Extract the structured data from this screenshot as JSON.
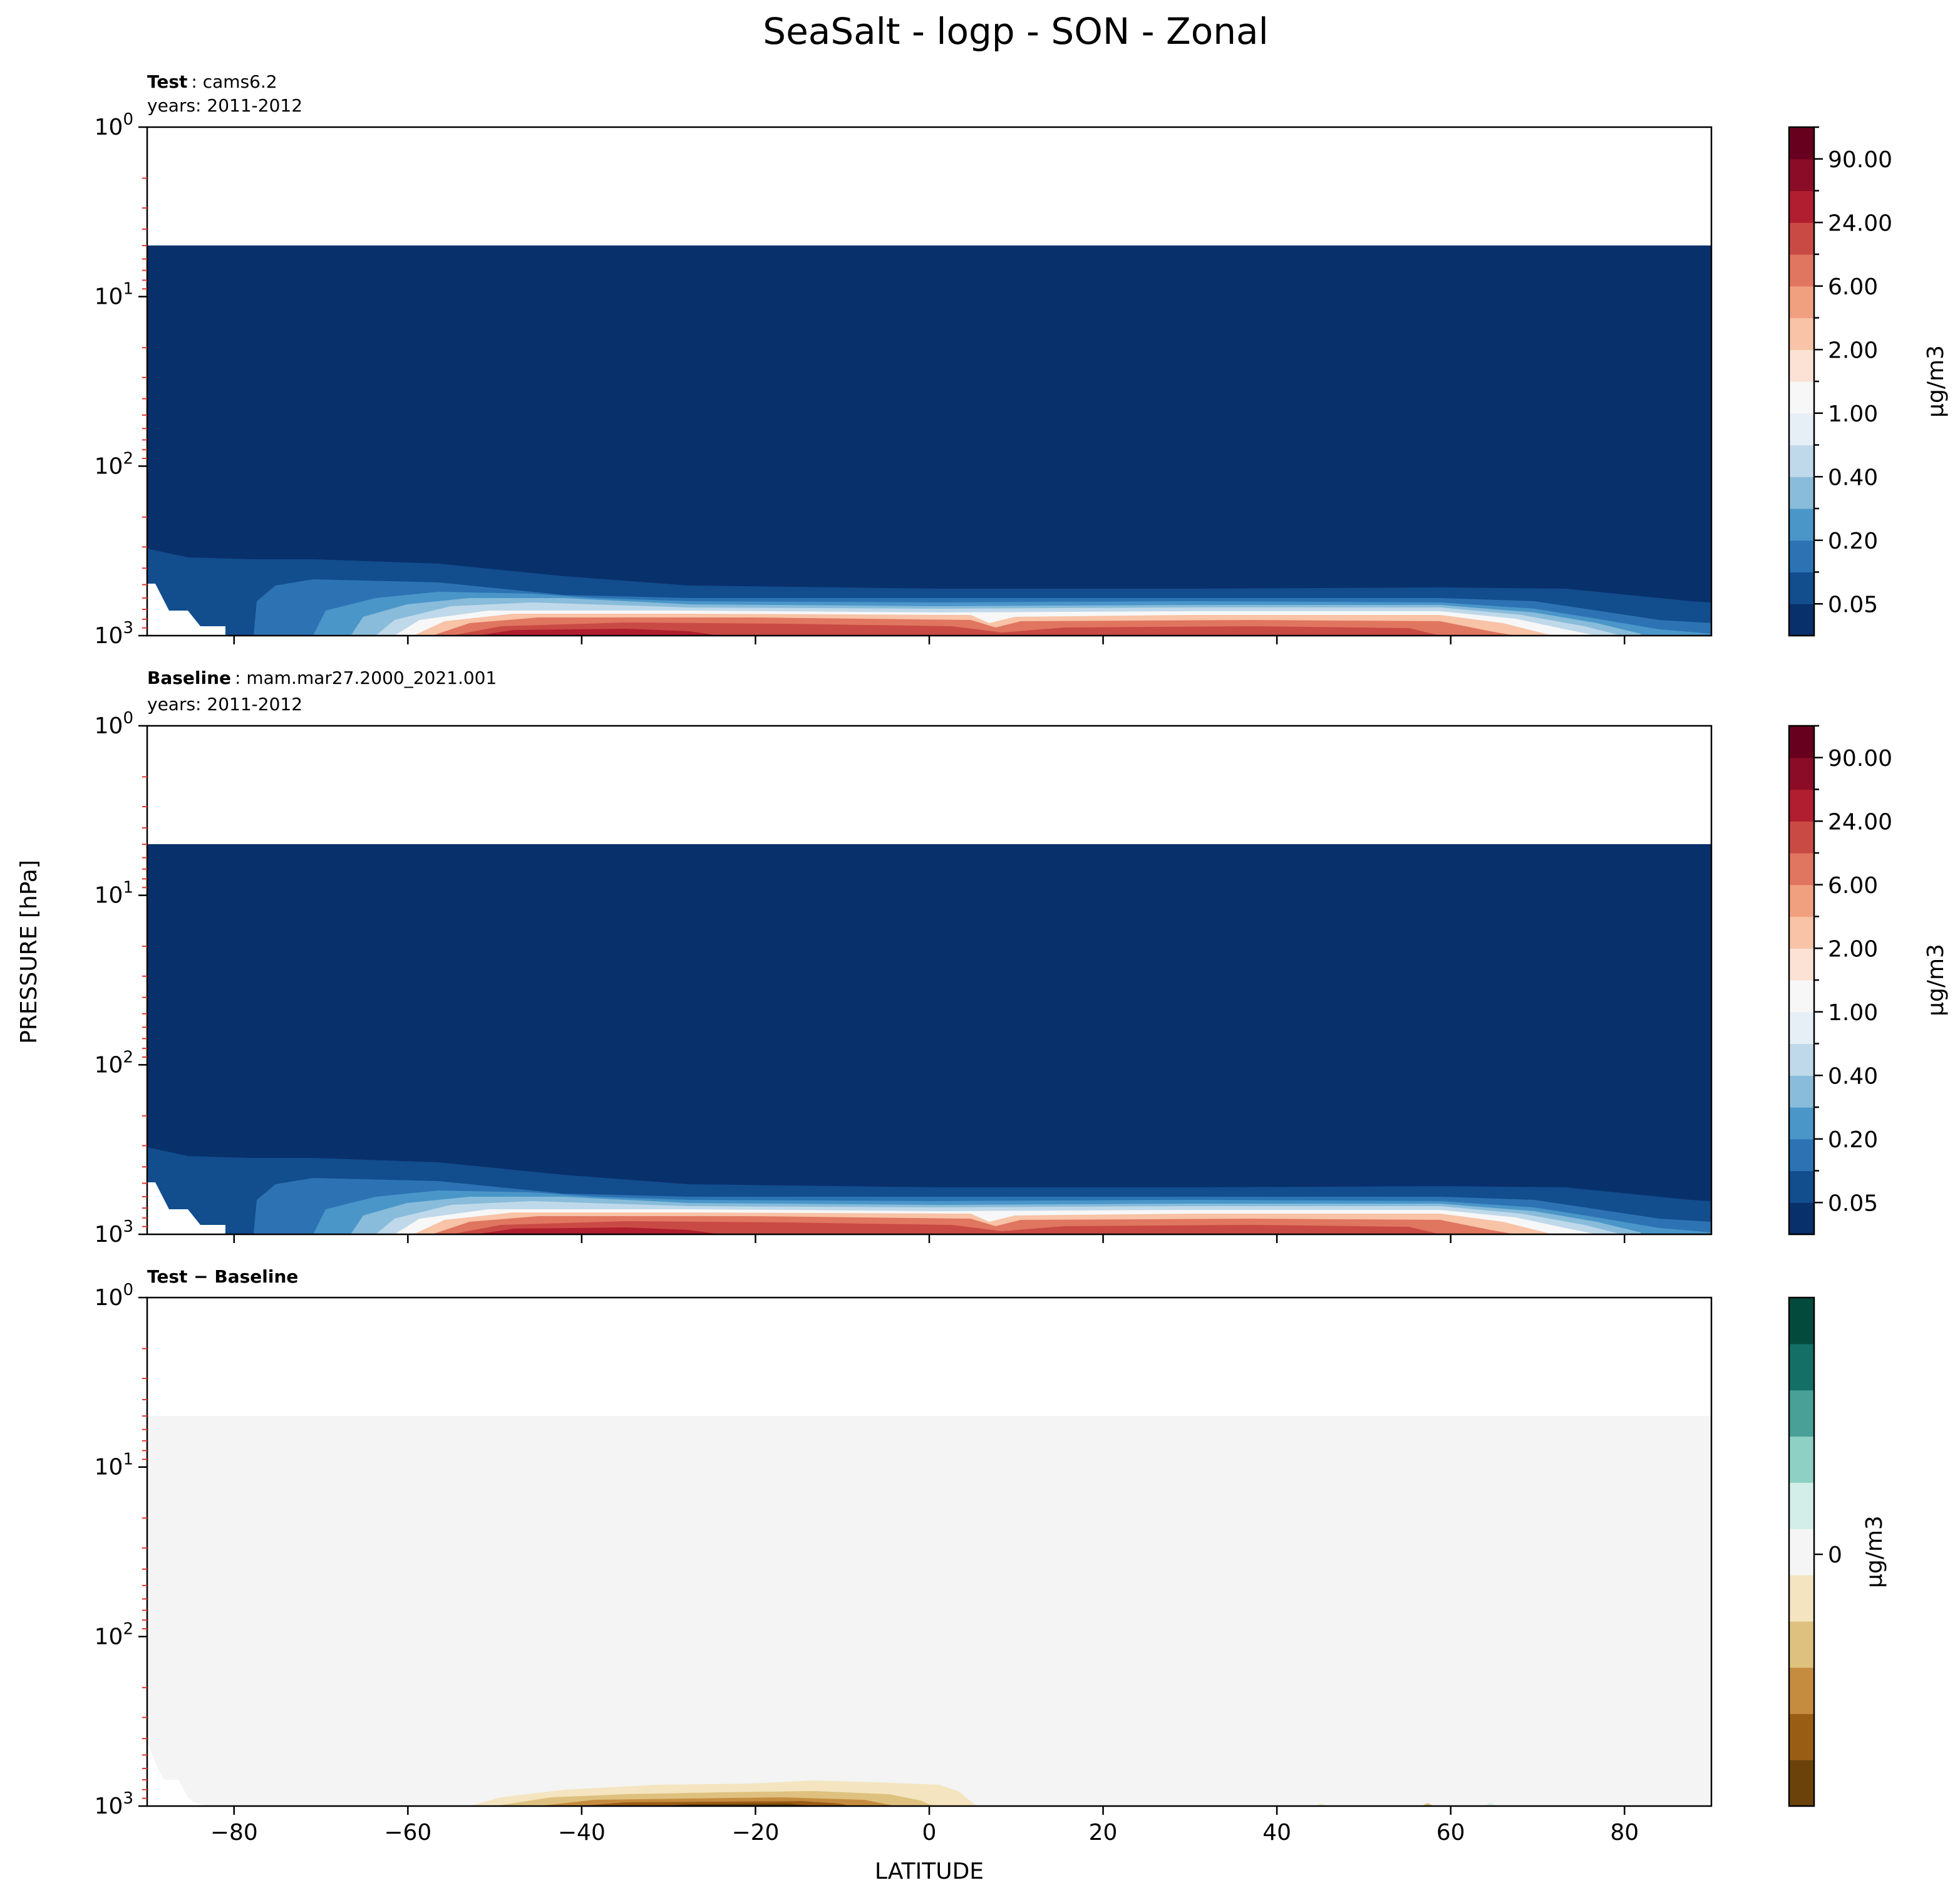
{
  "figure": {
    "title": "SeaSalt - logp - SON - Zonal",
    "ylabel": "PRESSURE [hPa]",
    "xlabel": "LATITUDE"
  },
  "chart_data": [
    {
      "type": "heatmap",
      "title_bold": "Test",
      "title_rest": ": cams6.2",
      "subtitle": "years: 2011-2012",
      "xlim": [
        -90,
        90
      ],
      "ylim_log": [
        1000,
        1
      ],
      "y_ticks": [
        "10^0",
        "10^1",
        "10^2",
        "10^3"
      ],
      "x_ticks": [
        -80,
        -60,
        -40,
        -20,
        0,
        20,
        40,
        60,
        80
      ],
      "x_tick_labels_visible": false,
      "model_top_hpa": 5,
      "colorbar": {
        "label": "μg/m3",
        "tick_labels": [
          "0.05",
          "0.20",
          "0.40",
          "1.00",
          "2.00",
          "6.00",
          "24.00",
          "90.00"
        ],
        "colors": [
          "#08306b",
          "#124d8e",
          "#2d73b4",
          "#4a96c9",
          "#89bcda",
          "#bfd9ea",
          "#e6eff5",
          "#f7f7f7",
          "#fbe2d4",
          "#f8c3a6",
          "#f1a07f",
          "#e07560",
          "#c94a44",
          "#b01e2f",
          "#8a0c26",
          "#67001f"
        ]
      }
    },
    {
      "type": "heatmap",
      "title_bold": "Baseline",
      "title_rest": ": mam.mar27.2000_2021.001",
      "subtitle": "years: 2011-2012",
      "xlim": [
        -90,
        90
      ],
      "ylim_log": [
        1000,
        1
      ],
      "y_ticks": [
        "10^0",
        "10^1",
        "10^2",
        "10^3"
      ],
      "x_ticks": [
        -80,
        -60,
        -40,
        -20,
        0,
        20,
        40,
        60,
        80
      ],
      "x_tick_labels_visible": false,
      "model_top_hpa": 5,
      "colorbar": {
        "label": "μg/m3",
        "tick_labels": [
          "0.05",
          "0.20",
          "0.40",
          "1.00",
          "2.00",
          "6.00",
          "24.00",
          "90.00"
        ],
        "colors": [
          "#08306b",
          "#124d8e",
          "#2d73b4",
          "#4a96c9",
          "#89bcda",
          "#bfd9ea",
          "#e6eff5",
          "#f7f7f7",
          "#fbe2d4",
          "#f8c3a6",
          "#f1a07f",
          "#e07560",
          "#c94a44",
          "#b01e2f",
          "#8a0c26",
          "#67001f"
        ]
      }
    },
    {
      "type": "heatmap",
      "title_bold": "Test − Baseline",
      "title_rest": "",
      "subtitle": "",
      "xlim": [
        -90,
        90
      ],
      "ylim_log": [
        1000,
        1
      ],
      "y_ticks": [
        "10^0",
        "10^1",
        "10^2",
        "10^3"
      ],
      "x_ticks": [
        -80,
        -60,
        -40,
        -20,
        0,
        20,
        40,
        60,
        80
      ],
      "x_tick_labels": [
        "−80",
        "−60",
        "−40",
        "−20",
        "0",
        "20",
        "40",
        "60",
        "80"
      ],
      "x_tick_labels_visible": true,
      "model_top_hpa": 5,
      "colorbar": {
        "label": "μg/m3",
        "tick_labels": [
          "0"
        ],
        "colors": [
          "#6b420a",
          "#9a5d14",
          "#c58c3f",
          "#dfc17f",
          "#f4e5c0",
          "#f5f5f5",
          "#d3ede8",
          "#8ed1c4",
          "#48a096",
          "#146f66",
          "#034a3d"
        ]
      }
    }
  ]
}
